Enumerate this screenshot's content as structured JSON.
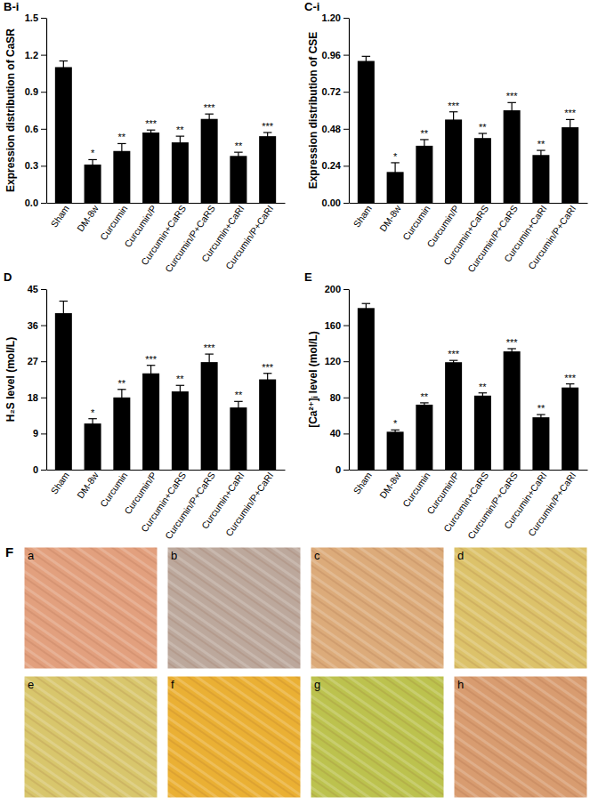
{
  "chart_data": [
    {
      "type": "bar",
      "title": "B-i",
      "y_label": "Expression distribution of CaSR",
      "categories": [
        "Sham",
        "DM-8w",
        "Curcumin",
        "Curcumin/P",
        "Curcumin+CaRS",
        "Curcumin/P+CaRS",
        "Curcumin+CaRI",
        "Curcumin/P+CaRI"
      ],
      "values": [
        1.1,
        0.31,
        0.42,
        0.57,
        0.49,
        0.68,
        0.38,
        0.54
      ],
      "errors": [
        0.05,
        0.04,
        0.06,
        0.02,
        0.05,
        0.04,
        0.03,
        0.03
      ],
      "annotations": [
        null,
        "*",
        "**",
        "***",
        "**",
        "***",
        "**",
        "***"
      ],
      "color": "#000000",
      "ylim": [
        0,
        1.5
      ],
      "yticks": [
        {
          "value": 0,
          "label": "0.0"
        },
        0.3,
        0.6,
        0.9,
        1.2,
        1.5
      ]
    },
    {
      "type": "bar",
      "title": "C-i",
      "y_label": "Expression distribution of CSE",
      "categories": [
        "Sham",
        "DM-8w",
        "Curcumin",
        "Curcumin/P",
        "Curcumin+CaRS",
        "Curcumin/P+CaRS",
        "Curcumin+CaRI",
        "Curcumin/P+CaRI"
      ],
      "values": [
        0.92,
        0.2,
        0.37,
        0.54,
        0.42,
        0.6,
        0.31,
        0.49
      ],
      "errors": [
        0.03,
        0.06,
        0.04,
        0.05,
        0.03,
        0.05,
        0.03,
        0.05
      ],
      "annotations": [
        null,
        "*",
        "**",
        "***",
        "**",
        "***",
        "**",
        "***"
      ],
      "color": "#000000",
      "ylim": [
        0,
        1.2
      ],
      "yticks": [
        {
          "value": 0,
          "label": "0.00"
        },
        0.24,
        0.48,
        0.72,
        0.96,
        {
          "value": 1.2,
          "label": "1.20"
        }
      ]
    },
    {
      "type": "bar",
      "title": "D",
      "y_label": "H₂S level (mol/L)",
      "categories": [
        "Sham",
        "DM-8w",
        "Curcumin",
        "Curcumin/P",
        "Curcumin+CaRS",
        "Curcumin/P+CaRS",
        "Curcumin+CaRI",
        "Curcumin/P+CaRI"
      ],
      "values": [
        39,
        11.5,
        18,
        24,
        19.5,
        26.8,
        15.5,
        22.5
      ],
      "errors": [
        3,
        1.2,
        2,
        2,
        1.5,
        2,
        1.5,
        1.5
      ],
      "annotations": [
        null,
        "*",
        "**",
        "***",
        "**",
        "***",
        "**",
        "***"
      ],
      "color": "#000000",
      "ylim": [
        0,
        45
      ],
      "yticks": [
        0,
        9,
        18,
        27,
        36,
        45
      ]
    },
    {
      "type": "bar",
      "title": "E",
      "y_label": "[Ca²⁺]ᵢ level (mol/L)",
      "categories": [
        "Sham",
        "DM-8w",
        "Curcumin",
        "Curcumin/P",
        "Curcumin+CaRS",
        "Curcumin/P+CaRS",
        "Curcumin+CaRI",
        "Curcumin/P+CaRI"
      ],
      "values": [
        179,
        42,
        72,
        119,
        82,
        131,
        58,
        91
      ],
      "errors": [
        5,
        2,
        2,
        2,
        3,
        3,
        3,
        4
      ],
      "annotations": [
        null,
        "*",
        "**",
        "***",
        "**",
        "***",
        "**",
        "***"
      ],
      "color": "#000000",
      "ylim": [
        0,
        200
      ],
      "yticks": [
        0,
        40,
        80,
        120,
        160,
        200
      ]
    }
  ],
  "image_panel": {
    "label": "F",
    "images": [
      {
        "label": "a",
        "color": "#e2a07e"
      },
      {
        "label": "b",
        "color": "#bca89c"
      },
      {
        "label": "c",
        "color": "#dcab7a"
      },
      {
        "label": "d",
        "color": "#dcc26a"
      },
      {
        "label": "e",
        "color": "#d8c66c"
      },
      {
        "label": "f",
        "color": "#eab034"
      },
      {
        "label": "g",
        "color": "#bcc24e"
      },
      {
        "label": "h",
        "color": "#d89c70"
      }
    ]
  }
}
